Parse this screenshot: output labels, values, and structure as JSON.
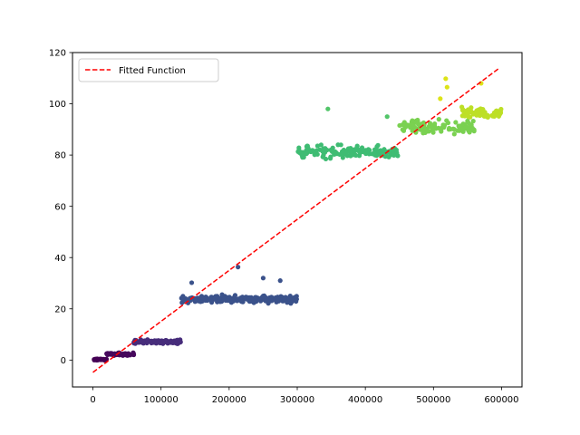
{
  "chart_data": {
    "type": "scatter",
    "title": "",
    "xlabel": "",
    "ylabel": "",
    "xlim": [
      -30000,
      630000
    ],
    "ylim": [
      -10.5,
      120
    ],
    "x_ticks": [
      0,
      100000,
      200000,
      300000,
      400000,
      500000,
      600000
    ],
    "x_tick_labels": [
      "0",
      "100000",
      "200000",
      "300000",
      "400000",
      "500000",
      "600000"
    ],
    "y_ticks": [
      0,
      20,
      40,
      60,
      80,
      100,
      120
    ],
    "y_tick_labels": [
      "0",
      "20",
      "40",
      "60",
      "80",
      "100",
      "120"
    ],
    "grid": false,
    "legend": {
      "position": "top-left",
      "entries": [
        {
          "label": "Fitted Function",
          "color": "#ff0000",
          "style": "dashed"
        }
      ]
    },
    "colormap": "viridis",
    "scatter_clusters": [
      {
        "x_range": [
          0,
          20000
        ],
        "y_center": 0.2,
        "y_spread": 0.4,
        "color": "#440154",
        "count": 50
      },
      {
        "x_range": [
          20000,
          60000
        ],
        "y_center": 2.3,
        "y_spread": 0.8,
        "color": "#46085c",
        "count": 70
      },
      {
        "x_range": [
          60000,
          130000
        ],
        "y_center": 7.2,
        "y_spread": 1.2,
        "color": "#472d7b",
        "count": 110
      },
      {
        "x_range": [
          130000,
          300000
        ],
        "y_center": 23.8,
        "y_spread": 2.2,
        "color": "#3b528b",
        "count": 220
      },
      {
        "x_range": [
          300000,
          450000
        ],
        "y_center": 81.0,
        "y_spread": 4.0,
        "color": "#3fbc73",
        "count": 150
      },
      {
        "x_range": [
          450000,
          560000
        ],
        "y_center": 91.0,
        "y_spread": 4.0,
        "color": "#7ad151",
        "count": 110
      },
      {
        "x_range": [
          540000,
          600000
        ],
        "y_center": 96.5,
        "y_spread": 3.0,
        "color": "#bddf26",
        "count": 70
      }
    ],
    "outliers": [
      {
        "x": 145000,
        "y": 30.2
      },
      {
        "x": 213000,
        "y": 36.3
      },
      {
        "x": 250000,
        "y": 32.0
      },
      {
        "x": 275000,
        "y": 31.0
      },
      {
        "x": 345000,
        "y": 98.0
      },
      {
        "x": 432000,
        "y": 95.0
      },
      {
        "x": 518000,
        "y": 109.8
      },
      {
        "x": 520000,
        "y": 106.5
      },
      {
        "x": 510000,
        "y": 102.0
      },
      {
        "x": 570000,
        "y": 108.0
      }
    ],
    "series": [
      {
        "name": "Fitted Function",
        "type": "line",
        "color": "#ff0000",
        "dash": "dashed",
        "x": [
          0,
          597000
        ],
        "y": [
          -4.8,
          114.0
        ]
      }
    ]
  }
}
